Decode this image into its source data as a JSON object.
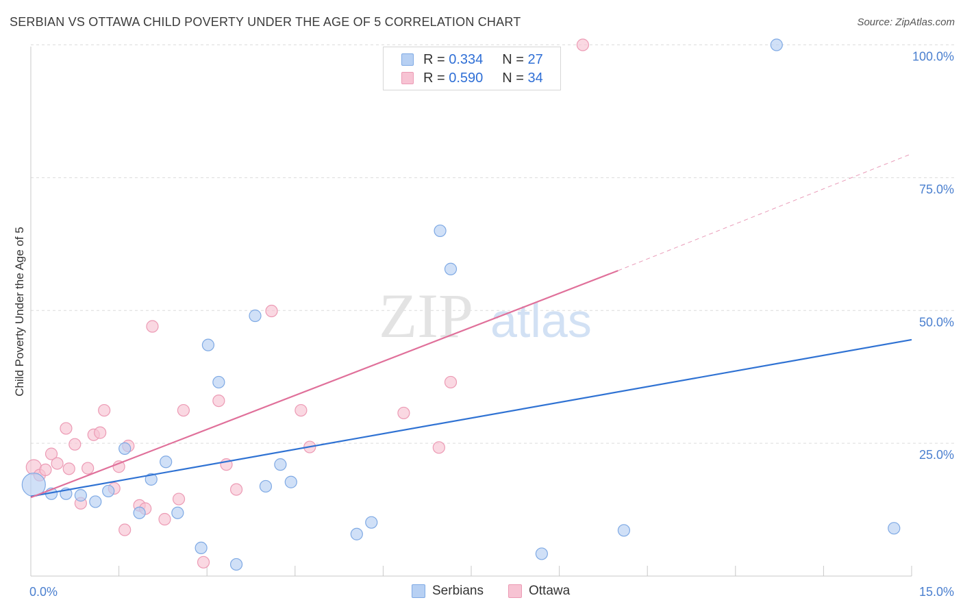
{
  "title": "SERBIAN VS OTTAWA CHILD POVERTY UNDER THE AGE OF 5 CORRELATION CHART",
  "source": "Source: ZipAtlas.com",
  "watermark": {
    "zip": "ZIP",
    "atlas": "atlas"
  },
  "legend": {
    "rows": [
      {
        "r_label": "R =",
        "r_value": "0.334",
        "n_label": "N =",
        "n_value": "27"
      },
      {
        "r_label": "R =",
        "r_value": "0.590",
        "n_label": "N =",
        "n_value": "34"
      }
    ]
  },
  "bottom_legend": [
    "Serbians",
    "Ottawa"
  ],
  "colors": {
    "serbians_fill": "#b7d0f3",
    "serbians_stroke": "#7ea9e4",
    "serbians_line": "#2f72d3",
    "ottawa_fill": "#f7c3d3",
    "ottawa_stroke": "#ec9ab4",
    "ottawa_line": "#e0709a",
    "grid": "#dcdcdc",
    "tick_label": "#4a7fcf"
  },
  "chart_data": {
    "type": "scatter",
    "title": "SERBIAN VS OTTAWA CHILD POVERTY UNDER THE AGE OF 5 CORRELATION CHART",
    "xlabel": "",
    "ylabel": "Child Poverty Under the Age of 5",
    "xlim": [
      0,
      15
    ],
    "ylim": [
      0,
      102
    ],
    "x_tick_labels": [
      "0.0%",
      "15.0%"
    ],
    "y_ticks": [
      25,
      50,
      75,
      100
    ],
    "y_tick_labels": [
      "25.0%",
      "50.0%",
      "75.0%",
      "100.0%"
    ],
    "series": [
      {
        "name": "Serbians",
        "r": 0.334,
        "n": 27,
        "points": [
          [
            0.05,
            17.2
          ],
          [
            0.35,
            15.5
          ],
          [
            0.6,
            15.5
          ],
          [
            0.85,
            15.2
          ],
          [
            1.1,
            14.0
          ],
          [
            1.32,
            16.0
          ],
          [
            1.6,
            24.0
          ],
          [
            1.85,
            11.9
          ],
          [
            2.05,
            18.2
          ],
          [
            2.3,
            21.5
          ],
          [
            2.5,
            11.9
          ],
          [
            2.9,
            5.3
          ],
          [
            3.02,
            43.5
          ],
          [
            3.2,
            36.5
          ],
          [
            3.5,
            2.2
          ],
          [
            3.82,
            49.0
          ],
          [
            4.0,
            16.9
          ],
          [
            4.25,
            21.0
          ],
          [
            4.43,
            17.7
          ],
          [
            5.55,
            7.9
          ],
          [
            5.8,
            10.1
          ],
          [
            6.97,
            65.0
          ],
          [
            7.15,
            57.8
          ],
          [
            8.7,
            4.2
          ],
          [
            10.1,
            8.6
          ],
          [
            12.7,
            100.0
          ],
          [
            14.7,
            9.0
          ]
        ],
        "trend": [
          [
            0.0,
            15.0
          ],
          [
            15.0,
            44.5
          ]
        ]
      },
      {
        "name": "Ottawa",
        "r": 0.59,
        "n": 34,
        "points": [
          [
            0.05,
            20.5
          ],
          [
            0.15,
            19.0
          ],
          [
            0.25,
            20.0
          ],
          [
            0.35,
            23.0
          ],
          [
            0.45,
            21.2
          ],
          [
            0.6,
            27.8
          ],
          [
            0.65,
            20.2
          ],
          [
            0.75,
            24.8
          ],
          [
            0.85,
            13.7
          ],
          [
            0.97,
            20.3
          ],
          [
            1.07,
            26.6
          ],
          [
            1.18,
            27.0
          ],
          [
            1.25,
            31.2
          ],
          [
            1.42,
            16.5
          ],
          [
            1.5,
            20.6
          ],
          [
            1.6,
            8.7
          ],
          [
            1.66,
            24.5
          ],
          [
            1.85,
            13.3
          ],
          [
            1.95,
            12.7
          ],
          [
            2.07,
            47.0
          ],
          [
            2.28,
            10.7
          ],
          [
            2.52,
            14.5
          ],
          [
            2.6,
            31.2
          ],
          [
            2.94,
            2.6
          ],
          [
            3.2,
            33.0
          ],
          [
            3.33,
            21.0
          ],
          [
            3.5,
            16.3
          ],
          [
            4.1,
            49.9
          ],
          [
            4.6,
            31.2
          ],
          [
            4.75,
            24.3
          ],
          [
            6.35,
            30.7
          ],
          [
            6.95,
            24.2
          ],
          [
            7.15,
            36.5
          ],
          [
            9.4,
            100.0
          ]
        ],
        "trend": [
          [
            0.0,
            14.8
          ],
          [
            10.0,
            57.5
          ]
        ],
        "trend_dashed": [
          [
            10.0,
            57.5
          ],
          [
            15.0,
            79.5
          ]
        ]
      }
    ]
  }
}
